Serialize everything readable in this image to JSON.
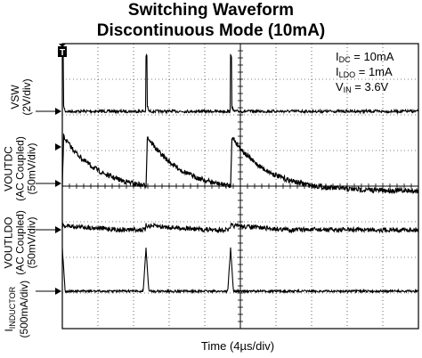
{
  "title_line1": "Switching Waveform",
  "title_line2": "Discontinuous Mode (10mA)",
  "conditions": [
    {
      "sym": "I",
      "sub": "DC",
      "rest": " = 10mA"
    },
    {
      "sym": "I",
      "sub": "LDO",
      "rest": " = 1mA"
    },
    {
      "sym": "V",
      "sub": "IN",
      "rest": " = 3.6V"
    }
  ],
  "trigger_marker": "T",
  "channel_labels": {
    "vsw": [
      "VSW",
      "(2V/div)"
    ],
    "voutdc": [
      "VOUTDC",
      "(AC Coupled)",
      "(50mV/div)"
    ],
    "voutldo": [
      "VOUTLDO",
      "(AC Coupled)",
      "(50mV/div)"
    ],
    "inductor": {
      "sym": "I",
      "sub": "INDUCTOR",
      "rest": "(500mA/div)"
    }
  },
  "x_axis_label": "Time (4µs/div)",
  "colors": {
    "trace": "#000000",
    "grid": "#000000",
    "background": "#ffffff"
  },
  "chart_data": {
    "type": "line",
    "x_unit": "µs",
    "x_per_div": 4,
    "x_divisions": 10,
    "xlim": [
      0,
      40
    ],
    "grid": true,
    "switching_events_us": [
      0,
      9.4,
      18.9
    ],
    "series": [
      {
        "name": "VSW",
        "scale_per_div": "2V/div",
        "baseline_div": 0,
        "spike_peak_div": 1.55,
        "spike_width_us": 0.3
      },
      {
        "name": "VOUTDC",
        "scale_per_div": "50mV/div",
        "coupling": "AC",
        "post_switch_peak_div": 0.6,
        "pre_switch_min_div": -0.75,
        "decay_shape": "exponential"
      },
      {
        "name": "VOUTLDO",
        "scale_per_div": "50mV/div",
        "coupling": "AC",
        "step_after_switch_div": 0.12,
        "noise_div": 0.1
      },
      {
        "name": "IINDUCTOR",
        "scale_per_div": "500mA/div",
        "pulse_peak_div": 1.2,
        "pulse_width_us": 0.8,
        "baseline_div": 0
      }
    ]
  }
}
